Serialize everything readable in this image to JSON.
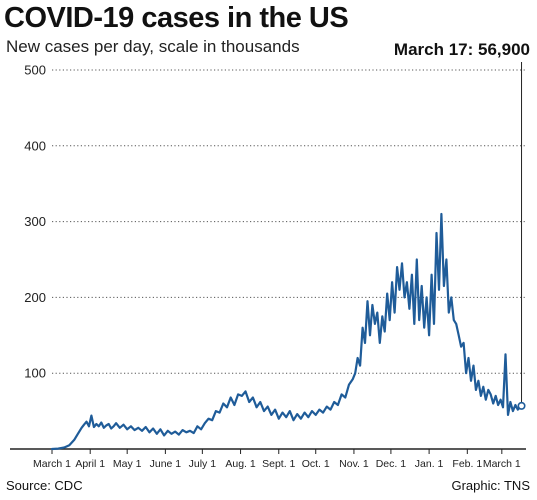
{
  "title": "COVID-19 cases in the US",
  "subtitle": "New cases per day, scale in thousands",
  "callout": "March 17: 56,900",
  "source": "Source: CDC",
  "credit": "Graphic: TNS",
  "colors": {
    "line": "#1f5c99",
    "grid": "#555555",
    "axis": "#222222"
  },
  "chart_data": {
    "type": "line",
    "title": "COVID-19 cases in the US",
    "ylabel": "New cases per day, scale in thousands",
    "ylim": [
      0,
      500
    ],
    "yticks": [
      100,
      200,
      300,
      400,
      500
    ],
    "xlim": [
      0,
      383
    ],
    "xticks": [
      {
        "label": "March 1",
        "x": 0
      },
      {
        "label": "April 1",
        "x": 31
      },
      {
        "label": "May 1",
        "x": 61
      },
      {
        "label": "June 1",
        "x": 92
      },
      {
        "label": "July 1",
        "x": 122
      },
      {
        "label": "Aug. 1",
        "x": 153
      },
      {
        "label": "Sept. 1",
        "x": 184
      },
      {
        "label": "Oct. 1",
        "x": 214
      },
      {
        "label": "Nov. 1",
        "x": 245
      },
      {
        "label": "Dec. 1",
        "x": 275
      },
      {
        "label": "Jan. 1",
        "x": 306
      },
      {
        "label": "Feb. 1",
        "x": 337
      },
      {
        "label": "March 1",
        "x": 365
      }
    ],
    "grid": true,
    "highlight": {
      "x": 381,
      "y": 56.9,
      "label": "March 17: 56,900"
    },
    "series": [
      {
        "x": [
          0,
          5,
          10,
          14,
          18,
          21,
          24,
          26,
          28,
          30,
          32,
          34,
          36,
          38,
          40,
          42,
          44,
          46,
          48,
          50,
          52,
          55,
          58,
          61,
          64,
          67,
          70,
          73,
          76,
          79,
          82,
          85,
          88,
          91,
          94,
          97,
          100,
          103,
          106,
          109,
          112,
          115,
          118,
          121,
          124,
          127,
          130,
          133,
          136,
          139,
          142,
          145,
          148,
          151,
          154,
          157,
          160,
          163,
          166,
          169,
          172,
          175,
          178,
          181,
          184,
          187,
          190,
          193,
          196,
          199,
          202,
          205,
          208,
          211,
          214,
          217,
          220,
          223,
          226,
          229,
          232,
          235,
          238,
          241,
          244,
          246,
          248,
          250,
          252,
          254,
          256,
          258,
          260,
          262,
          264,
          266,
          268,
          270,
          272,
          274,
          276,
          278,
          280,
          282,
          284,
          286,
          288,
          290,
          292,
          294,
          296,
          298,
          300,
          302,
          304,
          306,
          308,
          310,
          312,
          314,
          316,
          318,
          320,
          322,
          324,
          326,
          328,
          330,
          332,
          334,
          336,
          338,
          340,
          342,
          344,
          346,
          348,
          350,
          352,
          354,
          356,
          358,
          360,
          362,
          364,
          366,
          368,
          370,
          372,
          374,
          376,
          378,
          381
        ],
        "y": [
          0,
          0.5,
          2,
          5,
          12,
          20,
          28,
          32,
          36,
          30,
          44,
          29,
          33,
          30,
          35,
          28,
          31,
          33,
          27,
          30,
          34,
          28,
          32,
          26,
          30,
          25,
          28,
          24,
          29,
          22,
          27,
          20,
          26,
          18,
          24,
          20,
          23,
          19,
          25,
          22,
          24,
          21,
          30,
          26,
          34,
          40,
          38,
          50,
          48,
          60,
          55,
          68,
          58,
          72,
          70,
          76,
          62,
          68,
          55,
          62,
          50,
          56,
          45,
          52,
          40,
          48,
          42,
          50,
          38,
          46,
          40,
          48,
          42,
          50,
          45,
          52,
          48,
          56,
          52,
          62,
          58,
          72,
          68,
          85,
          92,
          100,
          120,
          110,
          160,
          140,
          195,
          150,
          190,
          165,
          180,
          140,
          175,
          155,
          205,
          170,
          220,
          180,
          240,
          210,
          245,
          200,
          220,
          185,
          230,
          165,
          250,
          170,
          215,
          160,
          200,
          150,
          230,
          165,
          285,
          210,
          310,
          215,
          250,
          180,
          200,
          170,
          165,
          150,
          135,
          140,
          100,
          120,
          90,
          110,
          78,
          90,
          70,
          82,
          65,
          78,
          72,
          60,
          70,
          58,
          65,
          55,
          125,
          45,
          62,
          50,
          58,
          52,
          56.9
        ]
      }
    ]
  }
}
